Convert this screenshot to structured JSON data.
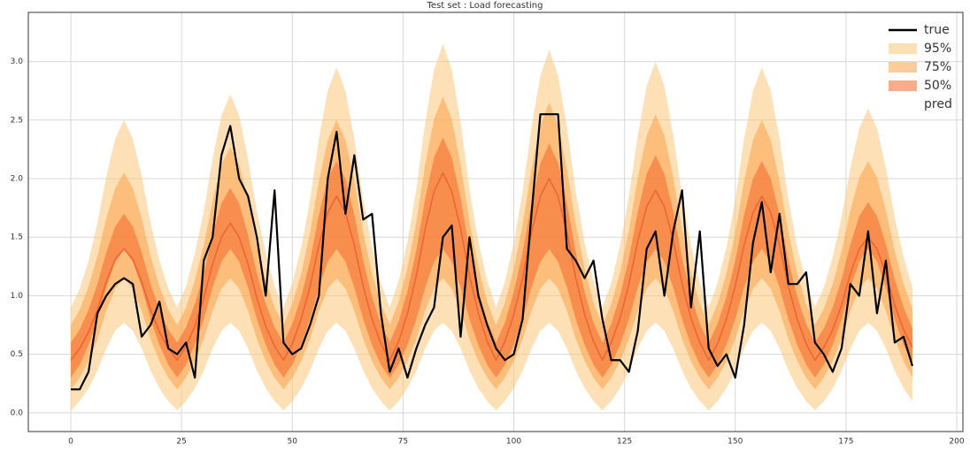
{
  "chart_data": {
    "type": "band-line",
    "title": "Test set : Load forecasting",
    "x": [
      0,
      2,
      4,
      6,
      8,
      10,
      12,
      14,
      16,
      18,
      20,
      22,
      24,
      26,
      28,
      30,
      32,
      34,
      36,
      38,
      40,
      42,
      44,
      46,
      48,
      50,
      52,
      54,
      56,
      58,
      60,
      62,
      64,
      66,
      68,
      70,
      72,
      74,
      76,
      78,
      80,
      82,
      84,
      86,
      88,
      90,
      92,
      94,
      96,
      98,
      100,
      102,
      104,
      106,
      108,
      110,
      112,
      114,
      116,
      118,
      120,
      122,
      124,
      126,
      128,
      130,
      132,
      134,
      136,
      138,
      140,
      142,
      144,
      146,
      148,
      150,
      152,
      154,
      156,
      158,
      160,
      162,
      164,
      166,
      168,
      170,
      172,
      174,
      176,
      178,
      180,
      182,
      184,
      186,
      188,
      190
    ],
    "xlim": [
      -9.6,
      201.4
    ],
    "xticks": [
      0,
      25,
      50,
      75,
      100,
      125,
      150,
      175,
      200
    ],
    "ylim": [
      -0.16,
      3.42
    ],
    "yticks": [
      {
        "value": 0,
        "label": "0.0"
      },
      {
        "value": 0.5,
        "label": "0.5"
      },
      {
        "value": 1,
        "label": "1.0"
      },
      {
        "value": 1.5,
        "label": "1.5"
      },
      {
        "value": 2,
        "label": "2.0"
      },
      {
        "value": 2.5,
        "label": "2.5"
      },
      {
        "value": 3,
        "label": "3.0"
      }
    ],
    "grid": true,
    "legend": "upper right",
    "series": [
      {
        "name": "true",
        "kind": "line",
        "color": "#000000",
        "values": [
          0.2,
          0.2,
          0.35,
          0.85,
          1.0,
          1.1,
          1.15,
          1.1,
          0.65,
          0.75,
          0.95,
          0.55,
          0.5,
          0.6,
          0.3,
          1.3,
          1.5,
          2.2,
          2.45,
          2.0,
          1.85,
          1.5,
          1.0,
          1.9,
          0.6,
          0.5,
          0.55,
          0.75,
          1.0,
          2.0,
          2.4,
          1.7,
          2.2,
          1.65,
          1.7,
          0.85,
          0.35,
          0.55,
          0.3,
          0.55,
          0.75,
          0.9,
          1.5,
          1.6,
          0.65,
          1.5,
          1.0,
          0.75,
          0.55,
          0.45,
          0.5,
          0.8,
          1.7,
          2.55,
          2.55,
          2.55,
          1.4,
          1.3,
          1.15,
          1.3,
          0.8,
          0.45,
          0.45,
          0.35,
          0.7,
          1.4,
          1.55,
          1.0,
          1.55,
          1.9,
          0.9,
          1.55,
          0.55,
          0.4,
          0.5,
          0.3,
          0.75,
          1.45,
          1.8,
          1.2,
          1.7,
          1.1,
          1.1,
          1.2,
          0.6,
          0.5,
          0.35,
          0.55,
          1.1,
          1.0,
          1.55,
          0.85,
          1.3,
          0.6,
          0.65,
          0.4
        ]
      },
      {
        "name": "95%",
        "kind": "band",
        "color": "#fdc77a",
        "lower": [
          0.02,
          0.1,
          0.21,
          0.36,
          0.55,
          0.7,
          0.77,
          0.7,
          0.55,
          0.36,
          0.21,
          0.1,
          0.02,
          0.1,
          0.21,
          0.36,
          0.55,
          0.7,
          0.77,
          0.7,
          0.55,
          0.36,
          0.21,
          0.1,
          0.02,
          0.1,
          0.21,
          0.36,
          0.55,
          0.7,
          0.77,
          0.7,
          0.55,
          0.36,
          0.21,
          0.1,
          0.02,
          0.1,
          0.21,
          0.36,
          0.55,
          0.7,
          0.77,
          0.7,
          0.55,
          0.36,
          0.21,
          0.1,
          0.02,
          0.1,
          0.21,
          0.36,
          0.55,
          0.7,
          0.77,
          0.7,
          0.55,
          0.36,
          0.21,
          0.1,
          0.02,
          0.1,
          0.21,
          0.36,
          0.55,
          0.7,
          0.77,
          0.7,
          0.55,
          0.36,
          0.21,
          0.1,
          0.02,
          0.1,
          0.21,
          0.36,
          0.55,
          0.7,
          0.77,
          0.7,
          0.55,
          0.36,
          0.21,
          0.1,
          0.02,
          0.1,
          0.21,
          0.36,
          0.55,
          0.7,
          0.77,
          0.7,
          0.55,
          0.36,
          0.21,
          0.1
        ],
        "upper": [
          0.9,
          1.06,
          1.3,
          1.62,
          2.02,
          2.34,
          2.5,
          2.34,
          2.02,
          1.62,
          1.3,
          1.06,
          0.9,
          1.08,
          1.36,
          1.72,
          2.17,
          2.54,
          2.72,
          2.54,
          2.17,
          1.72,
          1.36,
          1.08,
          0.9,
          1.11,
          1.41,
          1.82,
          2.34,
          2.75,
          2.95,
          2.75,
          2.34,
          1.82,
          1.41,
          1.11,
          0.9,
          1.13,
          1.46,
          1.91,
          2.48,
          2.93,
          3.15,
          2.93,
          2.48,
          1.91,
          1.46,
          1.13,
          0.9,
          1.12,
          1.45,
          1.89,
          2.44,
          2.88,
          3.1,
          2.88,
          2.44,
          1.89,
          1.45,
          1.12,
          0.9,
          1.11,
          1.43,
          1.85,
          2.37,
          2.79,
          3.0,
          2.79,
          2.37,
          1.85,
          1.43,
          1.11,
          0.9,
          1.11,
          1.41,
          1.82,
          2.34,
          2.75,
          2.95,
          2.75,
          2.34,
          1.82,
          1.41,
          1.11,
          0.9,
          1.07,
          1.33,
          1.67,
          2.09,
          2.43,
          2.6,
          2.43,
          2.09,
          1.67,
          1.33,
          1.07
        ]
      },
      {
        "name": "75%",
        "kind": "band",
        "color": "#fca24a",
        "lower": [
          0.2,
          0.3,
          0.44,
          0.63,
          0.87,
          1.06,
          1.15,
          1.06,
          0.87,
          0.63,
          0.44,
          0.3,
          0.2,
          0.3,
          0.44,
          0.63,
          0.87,
          1.06,
          1.15,
          1.06,
          0.87,
          0.63,
          0.44,
          0.3,
          0.2,
          0.3,
          0.44,
          0.63,
          0.87,
          1.06,
          1.15,
          1.06,
          0.87,
          0.63,
          0.44,
          0.3,
          0.2,
          0.3,
          0.44,
          0.63,
          0.87,
          1.06,
          1.15,
          1.06,
          0.87,
          0.63,
          0.44,
          0.3,
          0.2,
          0.3,
          0.44,
          0.63,
          0.87,
          1.06,
          1.15,
          1.06,
          0.87,
          0.63,
          0.44,
          0.3,
          0.2,
          0.3,
          0.44,
          0.63,
          0.87,
          1.06,
          1.15,
          1.06,
          0.87,
          0.63,
          0.44,
          0.3,
          0.2,
          0.3,
          0.44,
          0.63,
          0.87,
          1.06,
          1.15,
          1.06,
          0.87,
          0.63,
          0.44,
          0.3,
          0.2,
          0.3,
          0.44,
          0.63,
          0.87,
          1.06,
          1.15,
          1.06,
          0.87,
          0.63,
          0.44,
          0.3
        ],
        "upper": [
          0.75,
          0.88,
          1.08,
          1.34,
          1.66,
          1.92,
          2.05,
          1.92,
          1.66,
          1.34,
          1.08,
          0.88,
          0.75,
          0.9,
          1.13,
          1.43,
          1.81,
          2.12,
          2.27,
          2.12,
          1.81,
          1.43,
          1.13,
          0.9,
          0.75,
          0.93,
          1.19,
          1.54,
          1.98,
          2.33,
          2.5,
          2.33,
          1.98,
          1.54,
          1.19,
          0.93,
          0.75,
          0.95,
          1.24,
          1.63,
          2.12,
          2.51,
          2.7,
          2.51,
          2.12,
          1.63,
          1.24,
          0.95,
          0.75,
          0.94,
          1.23,
          1.61,
          2.08,
          2.46,
          2.65,
          2.46,
          2.08,
          1.61,
          1.23,
          0.94,
          0.75,
          0.93,
          1.2,
          1.56,
          2.01,
          2.37,
          2.55,
          2.37,
          2.01,
          1.56,
          1.2,
          0.93,
          0.75,
          0.93,
          1.19,
          1.54,
          1.98,
          2.33,
          2.5,
          2.33,
          1.98,
          1.54,
          1.19,
          0.93,
          0.75,
          0.89,
          1.1,
          1.38,
          1.73,
          2.01,
          2.15,
          2.01,
          1.73,
          1.38,
          1.1,
          0.89
        ]
      },
      {
        "name": "50%",
        "kind": "band",
        "color": "#f4662a",
        "lower": [
          0.3,
          0.41,
          0.58,
          0.8,
          1.07,
          1.29,
          1.4,
          1.29,
          1.07,
          0.8,
          0.58,
          0.41,
          0.3,
          0.41,
          0.58,
          0.8,
          1.07,
          1.29,
          1.4,
          1.29,
          1.07,
          0.8,
          0.58,
          0.41,
          0.3,
          0.41,
          0.58,
          0.8,
          1.07,
          1.29,
          1.4,
          1.29,
          1.07,
          0.8,
          0.58,
          0.41,
          0.3,
          0.41,
          0.58,
          0.8,
          1.07,
          1.29,
          1.4,
          1.29,
          1.07,
          0.8,
          0.58,
          0.41,
          0.3,
          0.41,
          0.58,
          0.8,
          1.07,
          1.29,
          1.4,
          1.29,
          1.07,
          0.8,
          0.58,
          0.41,
          0.3,
          0.41,
          0.58,
          0.8,
          1.07,
          1.29,
          1.4,
          1.29,
          1.07,
          0.8,
          0.58,
          0.41,
          0.3,
          0.41,
          0.58,
          0.8,
          1.07,
          1.29,
          1.4,
          1.29,
          1.07,
          0.8,
          0.58,
          0.41,
          0.3,
          0.41,
          0.58,
          0.8,
          1.07,
          1.29,
          1.4,
          1.29,
          1.07,
          0.8,
          0.58,
          0.41
        ],
        "upper": [
          0.6,
          0.71,
          0.88,
          1.1,
          1.37,
          1.59,
          1.7,
          1.59,
          1.37,
          1.1,
          0.88,
          0.71,
          0.6,
          0.73,
          0.93,
          1.19,
          1.52,
          1.79,
          1.92,
          1.79,
          1.52,
          1.19,
          0.93,
          0.73,
          0.6,
          0.76,
          0.99,
          1.3,
          1.69,
          2.0,
          2.15,
          2.0,
          1.69,
          1.3,
          0.99,
          0.76,
          0.6,
          0.78,
          1.04,
          1.39,
          1.83,
          2.18,
          2.35,
          2.18,
          1.83,
          1.39,
          1.04,
          0.78,
          0.6,
          0.77,
          1.03,
          1.37,
          1.79,
          2.13,
          2.3,
          2.13,
          1.79,
          1.37,
          1.03,
          0.77,
          0.6,
          0.76,
          1.0,
          1.32,
          1.72,
          2.04,
          2.2,
          2.04,
          1.72,
          1.32,
          1.0,
          0.76,
          0.6,
          0.76,
          0.99,
          1.3,
          1.69,
          2.0,
          2.15,
          2.0,
          1.69,
          1.3,
          0.99,
          0.76,
          0.6,
          0.72,
          0.9,
          1.14,
          1.44,
          1.68,
          1.8,
          1.68,
          1.44,
          1.14,
          0.9,
          0.72
        ]
      },
      {
        "name": "pred",
        "kind": "line",
        "color": "#e8401a",
        "values": [
          0.45,
          0.55,
          0.69,
          0.88,
          1.12,
          1.31,
          1.4,
          1.31,
          1.12,
          0.88,
          0.69,
          0.55,
          0.45,
          0.57,
          0.74,
          0.98,
          1.27,
          1.5,
          1.62,
          1.5,
          1.27,
          0.98,
          0.74,
          0.57,
          0.45,
          0.59,
          0.8,
          1.08,
          1.43,
          1.71,
          1.85,
          1.71,
          1.43,
          1.08,
          0.8,
          0.59,
          0.45,
          0.61,
          0.85,
          1.17,
          1.57,
          1.89,
          2.05,
          1.89,
          1.57,
          1.17,
          0.85,
          0.61,
          0.45,
          0.61,
          0.84,
          1.15,
          1.54,
          1.85,
          2.0,
          1.85,
          1.54,
          1.15,
          0.84,
          0.61,
          0.45,
          0.6,
          0.81,
          1.1,
          1.47,
          1.76,
          1.9,
          1.76,
          1.47,
          1.1,
          0.81,
          0.6,
          0.45,
          0.59,
          0.8,
          1.08,
          1.43,
          1.71,
          1.85,
          1.71,
          1.43,
          1.08,
          0.8,
          0.59,
          0.45,
          0.56,
          0.71,
          0.92,
          1.19,
          1.4,
          1.5,
          1.4,
          1.19,
          0.92,
          0.71,
          0.56
        ]
      }
    ]
  }
}
